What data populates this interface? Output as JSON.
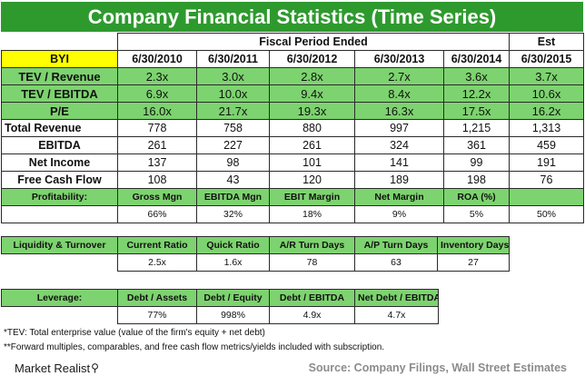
{
  "title": "Company Financial Statistics (Time Series)",
  "fiscal_header": "Fiscal Period Ended",
  "est_header": "Est",
  "ticker": "BYI",
  "periods": [
    "6/30/2010",
    "6/30/2011",
    "6/30/2012",
    "6/30/2013",
    "6/30/2014",
    "6/30/2015"
  ],
  "multiples": [
    {
      "label": "TEV / Revenue",
      "values": [
        "2.3x",
        "3.0x",
        "2.8x",
        "2.7x",
        "3.6x",
        "3.7x"
      ]
    },
    {
      "label": "TEV / EBITDA",
      "values": [
        "6.9x",
        "10.0x",
        "9.4x",
        "8.4x",
        "12.2x",
        "10.6x"
      ]
    },
    {
      "label": "P/E",
      "values": [
        "16.0x",
        "21.7x",
        "19.3x",
        "16.3x",
        "17.5x",
        "16.2x"
      ]
    }
  ],
  "financials": [
    {
      "label": "Total Revenue",
      "values": [
        "778",
        "758",
        "880",
        "997",
        "1,215",
        "1,313"
      ]
    },
    {
      "label": "EBITDA",
      "values": [
        "261",
        "227",
        "261",
        "324",
        "361",
        "459"
      ]
    },
    {
      "label": "Net Income",
      "values": [
        "137",
        "98",
        "101",
        "141",
        "99",
        "191"
      ]
    },
    {
      "label": "Free Cash Flow",
      "values": [
        "108",
        "43",
        "120",
        "189",
        "198",
        "76"
      ]
    }
  ],
  "profitability": {
    "label": "Profitability:",
    "headers": [
      "Gross Mgn",
      "EBITDA Mgn",
      "EBIT Margin",
      "Net Margin",
      "ROA (%)",
      ""
    ],
    "values": [
      "66%",
      "32%",
      "18%",
      "9%",
      "5%",
      "50%"
    ]
  },
  "liquidity": {
    "label": "Liquidity & Turnover",
    "headers": [
      "Current Ratio",
      "Quick Ratio",
      "A/R Turn Days",
      "A/P Turn Days",
      "Inventory Days"
    ],
    "values": [
      "2.5x",
      "1.6x",
      "78",
      "63",
      "27"
    ]
  },
  "leverage": {
    "label": "Leverage:",
    "headers": [
      "Debt / Assets",
      "Debt / Equity",
      "Debt / EBITDA",
      "Net Debt / EBITDA"
    ],
    "values": [
      "77%",
      "998%",
      "4.9x",
      "4.7x"
    ]
  },
  "footnotes": [
    "*TEV: Total enterprise value (value of the firm's equity + net debt)",
    "**Forward multiples, comparables, and free cash flow metrics/yields included with subscription."
  ],
  "brand": "Market Realist",
  "source": "Source: Company Filings, Wall Street Estimates"
}
